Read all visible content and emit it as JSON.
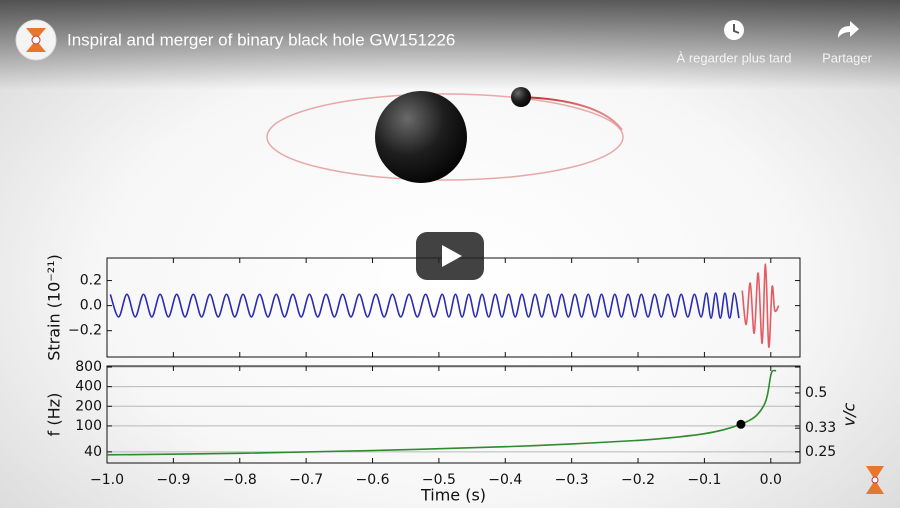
{
  "header": {
    "title": "Inspiral and merger of binary black hole GW151226",
    "watch_later": "À regarder plus tard",
    "share": "Partager"
  },
  "chart_data": [
    {
      "type": "line",
      "ylabel": "Strain (10⁻²¹)",
      "xlim": [
        -1.0,
        0.044
      ],
      "ylim": [
        -0.41,
        0.38
      ],
      "yticks": [
        0.2,
        {
          "value": 0,
          "label": "0.0"
        },
        {
          "value": -0.2,
          "label": "−0.2"
        }
      ],
      "series": [
        {
          "color": "#2a2ab4",
          "x": [
            -0.995,
            -0.9825,
            -0.97,
            -0.9575,
            -0.945,
            -0.9325,
            -0.92,
            -0.9075,
            -0.895,
            -0.8825,
            -0.87,
            -0.8575,
            -0.845,
            -0.8325,
            -0.82,
            -0.8075,
            -0.795,
            -0.7825,
            -0.77,
            -0.7575,
            -0.745,
            -0.7325,
            -0.72,
            -0.7075,
            -0.695,
            -0.6825,
            -0.67,
            -0.6575,
            -0.645,
            -0.6325,
            -0.62,
            -0.6075,
            -0.595,
            -0.5825,
            -0.57,
            -0.5575,
            -0.545,
            -0.5325,
            -0.52,
            -0.5075,
            -0.495,
            -0.485,
            -0.475,
            -0.465,
            -0.455,
            -0.445,
            -0.435,
            -0.425,
            -0.415,
            -0.405,
            -0.395,
            -0.385,
            -0.375,
            -0.365,
            -0.355,
            -0.345,
            -0.335,
            -0.325,
            -0.315,
            -0.305,
            -0.295,
            -0.285,
            -0.275,
            -0.265,
            -0.255,
            -0.245,
            -0.235,
            -0.225,
            -0.215,
            -0.205,
            -0.195,
            -0.185,
            -0.175,
            -0.165,
            -0.155,
            -0.145,
            -0.135,
            -0.125,
            -0.115,
            -0.105,
            -0.097,
            -0.09,
            -0.083,
            -0.076,
            -0.069,
            -0.062,
            -0.055,
            -0.048
          ],
          "values": [
            0.09,
            -0.09,
            0.09,
            -0.09,
            0.09,
            -0.09,
            0.09,
            -0.09,
            0.09,
            -0.09,
            0.09,
            -0.09,
            0.09,
            -0.09,
            0.09,
            -0.09,
            0.09,
            -0.09,
            0.09,
            -0.09,
            0.09,
            -0.09,
            0.09,
            -0.09,
            0.09,
            -0.09,
            0.09,
            -0.09,
            0.09,
            -0.09,
            0.09,
            -0.09,
            0.09,
            -0.09,
            0.09,
            -0.09,
            0.09,
            -0.09,
            0.09,
            -0.09,
            0.09,
            -0.09,
            0.09,
            -0.09,
            0.09,
            -0.09,
            0.09,
            -0.09,
            0.09,
            -0.09,
            0.09,
            -0.09,
            0.09,
            -0.09,
            0.09,
            -0.09,
            0.09,
            -0.09,
            0.09,
            -0.09,
            0.09,
            -0.09,
            0.09,
            -0.09,
            0.09,
            -0.09,
            0.09,
            -0.09,
            0.09,
            -0.09,
            0.09,
            -0.09,
            0.09,
            -0.09,
            0.09,
            -0.09,
            0.09,
            -0.09,
            0.09,
            -0.09,
            0.1,
            -0.1,
            0.1,
            -0.1,
            0.1,
            -0.1,
            0.1,
            -0.1
          ]
        },
        {
          "color": "#e35a63",
          "x": [
            -0.043,
            -0.037,
            -0.031,
            -0.025,
            -0.019,
            -0.013,
            -0.008,
            -0.003,
            0.002,
            0.006,
            0.012
          ],
          "values": [
            0.12,
            -0.15,
            0.18,
            -0.22,
            0.26,
            -0.3,
            0.33,
            -0.33,
            0.15,
            -0.04,
            0
          ]
        }
      ]
    },
    {
      "type": "line",
      "ylabel": "f (Hz)",
      "xlabel": "Time (s)",
      "y2label": "v/c",
      "xlim": [
        -1.0,
        0.044
      ],
      "ylim": [
        27,
        830
      ],
      "ylog": true,
      "grid": true,
      "y2lim": [
        0.219,
        0.687
      ],
      "y2log": true,
      "xticks": [
        {
          "value": -1.0,
          "label": "−1.0"
        },
        {
          "value": -0.9,
          "label": "−0.9"
        },
        {
          "value": -0.8,
          "label": "−0.8"
        },
        {
          "value": -0.7,
          "label": "−0.7"
        },
        {
          "value": -0.6,
          "label": "−0.6"
        },
        {
          "value": -0.5,
          "label": "−0.5"
        },
        {
          "value": -0.4,
          "label": "−0.4"
        },
        {
          "value": -0.3,
          "label": "−0.3"
        },
        {
          "value": -0.2,
          "label": "−0.2"
        },
        {
          "value": -0.1,
          "label": "−0.1"
        },
        {
          "value": 0,
          "label": "0.0"
        }
      ],
      "yticks": [
        40,
        100,
        200,
        400,
        800
      ],
      "y2ticks": [
        0.25,
        0.33,
        0.5
      ],
      "series": [
        {
          "color": "#2e8b2e",
          "x": [
            -1.0,
            -0.8,
            -0.6,
            -0.4,
            -0.3,
            -0.2,
            -0.15,
            -0.1,
            -0.07,
            -0.045,
            -0.03,
            -0.02,
            -0.01,
            -0.005,
            0.0,
            0.003,
            0.008
          ],
          "values": [
            36,
            38,
            42,
            48,
            53,
            60,
            66,
            76,
            88,
            106,
            125,
            150,
            210,
            300,
            600,
            700,
            700
          ]
        }
      ],
      "marker": {
        "x": -0.045,
        "y": 106
      }
    }
  ]
}
